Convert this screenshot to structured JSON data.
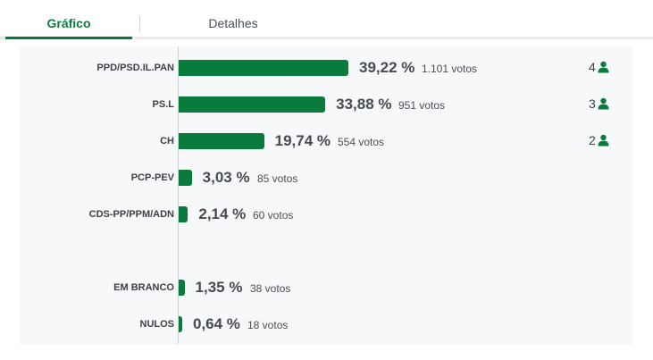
{
  "tabs": [
    {
      "label": "Gráfico",
      "active": true
    },
    {
      "label": "Detalhes",
      "active": false
    }
  ],
  "accent_color": "#0a7a3d",
  "chart_data": {
    "type": "bar",
    "orientation": "horizontal",
    "categories": [
      "PPD/PSD.IL.PAN",
      "PS.L",
      "CH",
      "PCP-PEV",
      "CDS-PP/PPM/ADN",
      "EM BRANCO",
      "NULOS"
    ],
    "values": [
      39.22,
      33.88,
      19.74,
      3.03,
      2.14,
      1.35,
      0.64
    ],
    "votes": [
      1101,
      951,
      554,
      85,
      60,
      38,
      18
    ],
    "seats": [
      4,
      3,
      2,
      null,
      null,
      null,
      null
    ]
  },
  "rows": [
    {
      "party": "PPD/PSD.IL.PAN",
      "pct": "39,22 %",
      "votes": "1.101 votos",
      "seats": "4",
      "value": 39.22
    },
    {
      "party": "PS.L",
      "pct": "33,88 %",
      "votes": "951 votos",
      "seats": "3",
      "value": 33.88
    },
    {
      "party": "CH",
      "pct": "19,74 %",
      "votes": "554 votos",
      "seats": "2",
      "value": 19.74
    },
    {
      "party": "PCP-PEV",
      "pct": "3,03 %",
      "votes": "85 votos",
      "seats": "",
      "value": 3.03
    },
    {
      "party": "CDS-PP/PPM/ADN",
      "pct": "2,14 %",
      "votes": "60 votos",
      "seats": "",
      "value": 2.14
    },
    {
      "party": "EM BRANCO",
      "pct": "1,35 %",
      "votes": "38 votos",
      "seats": "",
      "value": 1.35
    },
    {
      "party": "NULOS",
      "pct": "0,64 %",
      "votes": "18 votos",
      "seats": "",
      "value": 0.64
    }
  ]
}
